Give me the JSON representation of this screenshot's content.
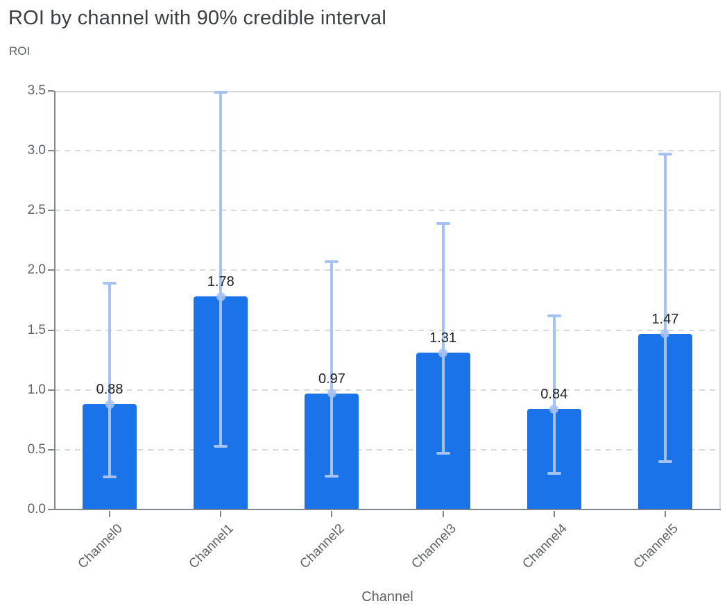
{
  "header": {
    "title": "ROI by channel with 90% credible interval"
  },
  "chart_data": {
    "type": "bar",
    "title": "ROI by channel with 90% credible interval",
    "xlabel": "Channel",
    "ylabel": "ROI",
    "categories": [
      "Channel0",
      "Channel1",
      "Channel2",
      "Channel3",
      "Channel4",
      "Channel5"
    ],
    "values": [
      0.88,
      1.78,
      0.97,
      1.31,
      0.84,
      1.47
    ],
    "bar_labels": [
      "0.88",
      "1.78",
      "0.97",
      "1.31",
      "0.84",
      "1.47"
    ],
    "error_interval": "90% credible interval",
    "error_low": [
      0.27,
      0.53,
      0.28,
      0.47,
      0.3,
      0.4
    ],
    "error_high": [
      1.89,
      3.49,
      2.07,
      2.39,
      1.62,
      2.97
    ],
    "ylim": [
      0,
      3.5
    ],
    "yticks": [
      0,
      0.5,
      1,
      1.5,
      2,
      2.5,
      3,
      3.5
    ],
    "ytick_labels": [
      "0.0",
      "0.5",
      "1.0",
      "1.5",
      "2.0",
      "2.5",
      "3.0",
      "3.5"
    ],
    "grid": "horizontal-dashed",
    "legend": "none",
    "colors": {
      "bar": "#1a73e8",
      "error_bar": "#a4c2f4",
      "marker": "#a4c2f4",
      "grid_line": "#d9d9d9",
      "axis_line": "#80868b",
      "title_text": "#3c4043",
      "axis_text": "#5f6368",
      "value_text": "#202124",
      "background": "#ffffff"
    }
  }
}
